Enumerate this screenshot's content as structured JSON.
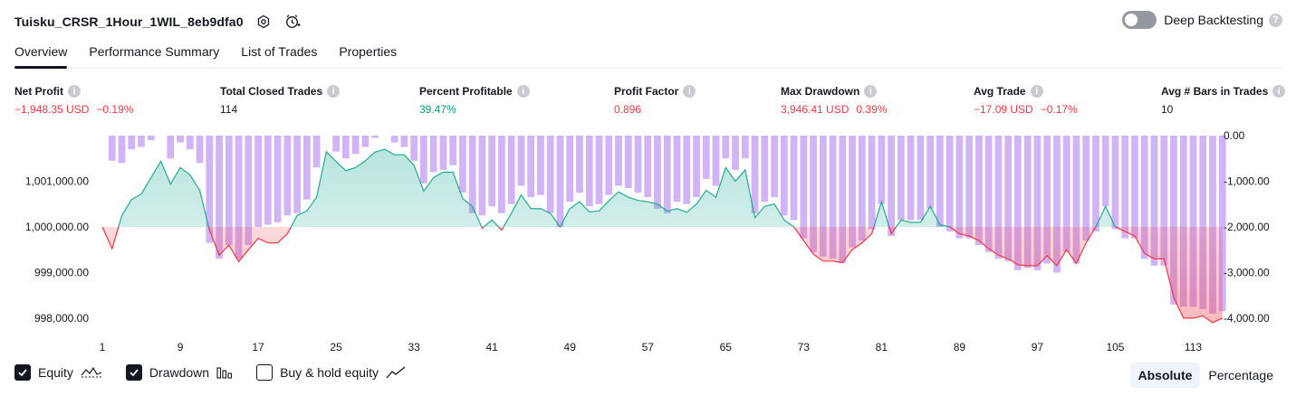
{
  "header": {
    "strategy_name": "Tuisku_CRSR_1Hour_1WIL_8eb9dfa0",
    "settings_icon": "gear-icon",
    "alert_icon": "add-alert-clock-icon",
    "deep_backtesting_label": "Deep Backtesting",
    "deep_backtesting_enabled": false
  },
  "tabs": [
    {
      "label": "Overview",
      "active": true
    },
    {
      "label": "Performance Summary",
      "active": false
    },
    {
      "label": "List of Trades",
      "active": false
    },
    {
      "label": "Properties",
      "active": false
    }
  ],
  "metrics": {
    "net_profit": {
      "label": "Net Profit",
      "value": "−1,948.35 USD",
      "pct": "−0.19%"
    },
    "total_closed_trades": {
      "label": "Total Closed Trades",
      "value": "114"
    },
    "percent_profitable": {
      "label": "Percent Profitable",
      "value": "39.47%"
    },
    "profit_factor": {
      "label": "Profit Factor",
      "value": "0.896"
    },
    "max_drawdown": {
      "label": "Max Drawdown",
      "value": "3,946.41 USD",
      "pct": "0.39%"
    },
    "avg_trade": {
      "label": "Avg Trade",
      "value": "−17.09 USD",
      "pct": "−0.17%"
    },
    "avg_bars": {
      "label": "Avg # Bars in Trades",
      "value": "10"
    }
  },
  "colors": {
    "positive": "#089981",
    "negative": "#f23645",
    "drawdown_bar": "#c9a6f5",
    "equity_line_up": "#22ab94",
    "equity_line_down": "#f23645"
  },
  "legend": {
    "equity_label": "Equity",
    "equity_checked": true,
    "drawdown_label": "Drawdown",
    "drawdown_checked": true,
    "buy_hold_label": "Buy & hold equity",
    "buy_hold_checked": false
  },
  "scale_toggle": {
    "absolute_label": "Absolute",
    "percentage_label": "Percentage",
    "selected": "Absolute"
  },
  "chart_data": {
    "type": "area",
    "baseline": 1000000,
    "left_axis": {
      "ticks": [
        "1,001,000.00",
        "1,000,000.00",
        "999,000.00",
        "998,000.00"
      ],
      "tick_values": [
        1001000,
        1000000,
        999000,
        998000
      ],
      "range": [
        997800,
        1002000
      ]
    },
    "right_axis": {
      "ticks": [
        "0.00",
        "-1,000.00",
        "-2,000.00",
        "-3,000.00",
        "-4,000.00"
      ],
      "tick_values": [
        0,
        -1000,
        -2000,
        -3000,
        -4000
      ],
      "range": [
        -4200,
        0
      ]
    },
    "x_ticks": [
      "1",
      "9",
      "17",
      "25",
      "33",
      "41",
      "49",
      "57",
      "65",
      "73",
      "81",
      "89",
      "97",
      "105",
      "113"
    ],
    "x_tick_values": [
      1,
      9,
      17,
      25,
      33,
      41,
      49,
      57,
      65,
      73,
      81,
      89,
      97,
      105,
      113
    ],
    "x_range": [
      1,
      115
    ],
    "series": [
      {
        "name": "Equity",
        "values": [
          1000000,
          999520,
          1000250,
          1000600,
          1000720,
          1001080,
          1001440,
          1000940,
          1001300,
          1001140,
          1000800,
          999930,
          999380,
          999600,
          999240,
          999500,
          999750,
          999650,
          999650,
          999850,
          1000250,
          1000350,
          1000650,
          1001650,
          1001430,
          1001230,
          1001300,
          1001450,
          1001640,
          1001700,
          1001580,
          1001580,
          1001350,
          1000780,
          1001080,
          1001200,
          1001200,
          1000620,
          1000450,
          999970,
          1000150,
          999930,
          1000300,
          1000700,
          1000400,
          1000400,
          1000300,
          1000000,
          1000400,
          1000550,
          1000330,
          1000350,
          1000570,
          1000770,
          1000650,
          1000580,
          1000550,
          1000500,
          1000350,
          1000400,
          1000320,
          1000500,
          1000800,
          1000650,
          1001300,
          1001000,
          1001250,
          1000200,
          1000450,
          1000500,
          1000150,
          1000000,
          999700,
          999400,
          999250,
          999250,
          999220,
          999500,
          999650,
          999850,
          1000550,
          999850,
          1000150,
          1000100,
          1000100,
          1000450,
          1000050,
          1000000,
          999850,
          999800,
          999700,
          999520,
          999380,
          999300,
          999170,
          999150,
          999150,
          999370,
          999150,
          999500,
          999200,
          999650,
          1000000,
          1000450,
          1000000,
          999900,
          999800,
          999420,
          999300,
          999300,
          998450,
          998000,
          998000,
          998050,
          997900,
          998000
        ],
        "equity_line": [
          1000000,
          999520,
          1000250,
          1000600,
          1000720,
          1001080,
          1001440,
          1000940,
          1001300,
          1001140,
          1000800,
          999930,
          999380,
          999600,
          999240,
          999500,
          999750,
          999650,
          999650,
          999850,
          1000250,
          1000350,
          1000650,
          1001650,
          1001430,
          1001230,
          1001300,
          1001450,
          1001640,
          1001700,
          1001580,
          1001580,
          1001350,
          1000780,
          1001080,
          1001200,
          1001200,
          1000620,
          1000450,
          999970,
          1000150,
          999930,
          1000300,
          1000700,
          1000400,
          1000400,
          1000300,
          1000000,
          1000400,
          1000550,
          1000330,
          1000350,
          1000570,
          1000770,
          1000650,
          1000580,
          1000550,
          1000500,
          1000350,
          1000400,
          1000320,
          1000500,
          1000800,
          1000650,
          1001300,
          1001000,
          1001250,
          1000200,
          1000450,
          1000500,
          1000150,
          1000000,
          999700,
          999400,
          999250,
          999250,
          999220,
          999500,
          999650,
          999850,
          1000550,
          999850,
          1000150,
          1000100,
          1000100,
          1000450,
          1000050,
          1000000,
          999850,
          999800,
          999700,
          999520,
          999380,
          999300,
          999170,
          999150,
          999150,
          999370,
          999150,
          999500,
          999200,
          999650,
          1000000,
          1000450,
          1000000,
          999900,
          999800,
          999420,
          999300,
          999300,
          998450,
          998000,
          998000,
          998050,
          997900,
          998000
        ]
      },
      {
        "name": "Drawdown",
        "values": [
          0,
          -550,
          -600,
          -300,
          -250,
          -100,
          0,
          -500,
          -150,
          -300,
          -600,
          -2350,
          -2700,
          -2400,
          -2700,
          -2400,
          -2000,
          -1950,
          -1900,
          -1750,
          -1700,
          -1400,
          -700,
          0,
          -350,
          -500,
          -400,
          -250,
          -50,
          0,
          -150,
          -250,
          -550,
          -1050,
          -800,
          -750,
          -650,
          -1250,
          -1700,
          -1750,
          -1550,
          -1700,
          -1500,
          -1100,
          -1350,
          -1300,
          -1700,
          -2000,
          -1450,
          -1250,
          -1550,
          -1500,
          -1300,
          -1100,
          -1150,
          -1250,
          -1350,
          -1600,
          -1700,
          -1450,
          -1500,
          -1350,
          -950,
          -1100,
          -500,
          -750,
          -500,
          -1700,
          -1450,
          -1350,
          -1750,
          -1850,
          -2250,
          -2550,
          -2650,
          -2700,
          -2800,
          -2450,
          -2300,
          -2050,
          -1500,
          -2200,
          -1850,
          -1850,
          -1850,
          -1600,
          -2000,
          -2100,
          -2250,
          -2250,
          -2400,
          -2550,
          -2700,
          -2750,
          -2950,
          -2900,
          -2950,
          -2800,
          -3000,
          -2550,
          -2800,
          -2300,
          -2100,
          -1550,
          -2050,
          -2250,
          -2250,
          -2700,
          -2850,
          -2850,
          -3700,
          -3750,
          -3750,
          -3800,
          -3900,
          -3850
        ],
        "bars": [
          0,
          -550,
          -600,
          -300,
          -250,
          -100,
          0,
          -500,
          -150,
          -300,
          -600,
          -2350,
          -2700,
          -2400,
          -2700,
          -2400,
          -2000,
          -1950,
          -1900,
          -1750,
          -1700,
          -1400,
          -700,
          0,
          -350,
          -500,
          -400,
          -250,
          -50,
          0,
          -150,
          -250,
          -550,
          -1050,
          -800,
          -750,
          -650,
          -1250,
          -1700,
          -1750,
          -1550,
          -1700,
          -1500,
          -1100,
          -1350,
          -1300,
          -1700,
          -2000,
          -1450,
          -1250,
          -1550,
          -1500,
          -1300,
          -1100,
          -1150,
          -1250,
          -1350,
          -1600,
          -1700,
          -1450,
          -1500,
          -1350,
          -950,
          -1100,
          -500,
          -750,
          -500,
          -1700,
          -1450,
          -1350,
          -1750,
          -1850,
          -2250,
          -2550,
          -2650,
          -2700,
          -2800,
          -2450,
          -2300,
          -2050,
          -1500,
          -2200,
          -1850,
          -1850,
          -1850,
          -1600,
          -2000,
          -2100,
          -2250,
          -2250,
          -2400,
          -2550,
          -2700,
          -2750,
          -2950,
          -2900,
          -2950,
          -2800,
          -3000,
          -2550,
          -2800,
          -2300,
          -2100,
          -1550,
          -2050,
          -2250,
          -2250,
          -2700,
          -2850,
          -2850,
          -3700,
          -3750,
          -3750,
          -3800,
          -3900,
          -3850
        ]
      }
    ]
  }
}
